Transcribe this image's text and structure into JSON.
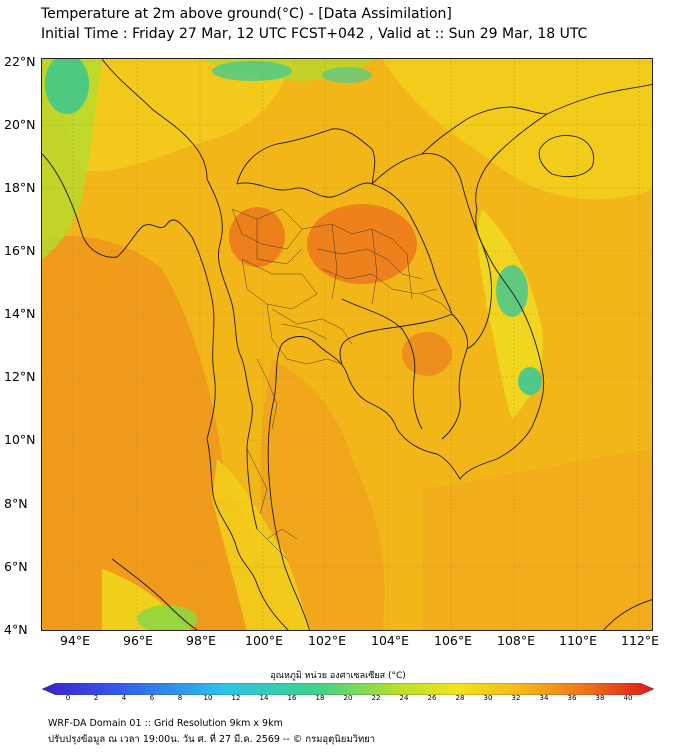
{
  "header": {
    "title_line1": "Temperature at 2m above ground(°C) - [Data Assimilation]",
    "title_line2": "Initial Time : Friday 27 Mar, 12 UTC FCST+042 , Valid at :: Sun 29 Mar, 18 UTC"
  },
  "map": {
    "lat_labels": [
      "22°N",
      "20°N",
      "18°N",
      "16°N",
      "14°N",
      "12°N",
      "10°N",
      "8°N",
      "6°N",
      "4°N"
    ],
    "lon_labels": [
      "94°E",
      "96°E",
      "98°E",
      "100°E",
      "102°E",
      "104°E",
      "106°E",
      "108°E",
      "110°E",
      "112°E"
    ],
    "lat_range": [
      4,
      22.2
    ],
    "lon_range": [
      93,
      112.5
    ],
    "colors": {
      "warm_base": "#f3b619",
      "hot": "#ef8e1c",
      "very_hot": "#ea6f1c",
      "mild": "#f2d41b",
      "cool": "#b8dc2a",
      "cold": "#3ec98a",
      "gridline": "#b88a2e",
      "border": "#1a1a1a"
    }
  },
  "colorbar": {
    "title": "อุณหภูมิ หน่วย องศาเซลเซียส (°C)",
    "ticks": [
      "0",
      "2",
      "4",
      "6",
      "8",
      "10",
      "12",
      "14",
      "16",
      "18",
      "20",
      "22",
      "24",
      "26",
      "28",
      "30",
      "32",
      "34",
      "36",
      "38",
      "40"
    ],
    "range": [
      0,
      40
    ]
  },
  "footer": {
    "line1": "WRF-DA Domain 01 :: Grid Resolution 9km x 9km",
    "line2": "ปรับปรุงข้อมูล ณ เวลา 19:00น. วัน ศ. ที่ 27 มี.ค. 2569 -- © กรมอุตุนิยมวิทยา"
  }
}
